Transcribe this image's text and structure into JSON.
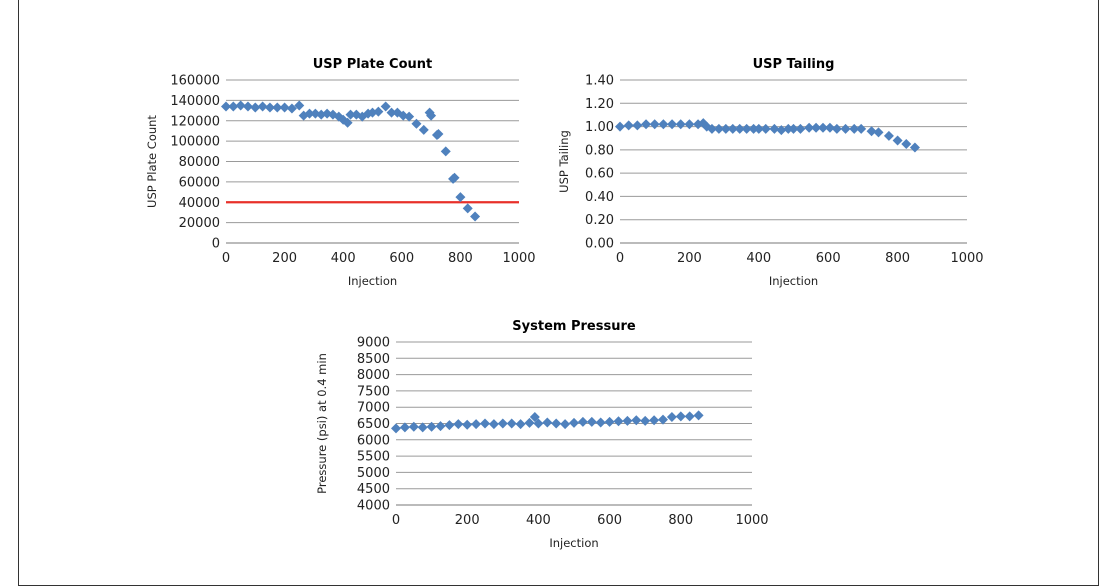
{
  "colors": {
    "marker": "#4f81bd",
    "threshold": "#e8302a",
    "grid": "#9a9a9a"
  },
  "chart_data": [
    {
      "type": "scatter",
      "title": "USP Plate Count",
      "xlabel": "Injection",
      "ylabel": "USP Plate Count",
      "xlim": [
        0,
        1000
      ],
      "ylim": [
        0,
        160000
      ],
      "x_ticks": [
        "0",
        "200",
        "400",
        "600",
        "800",
        "1000"
      ],
      "y_ticks": [
        "0",
        "20000",
        "40000",
        "60000",
        "80000",
        "100000",
        "120000",
        "140000",
        "160000"
      ],
      "grid": true,
      "threshold": 40000,
      "x": [
        0,
        25,
        50,
        75,
        100,
        125,
        150,
        175,
        200,
        225,
        250,
        265,
        285,
        305,
        325,
        345,
        365,
        385,
        400,
        415,
        425,
        445,
        465,
        485,
        500,
        520,
        545,
        565,
        585,
        605,
        625,
        650,
        675,
        695,
        700,
        720,
        725,
        750,
        775,
        780,
        800,
        825,
        850
      ],
      "y": [
        134000,
        134000,
        135000,
        134000,
        133000,
        134000,
        133000,
        133000,
        133000,
        132000,
        135000,
        125000,
        127000,
        127000,
        126000,
        127000,
        126000,
        124000,
        121000,
        118000,
        126000,
        126000,
        124000,
        127000,
        128000,
        129000,
        134000,
        128000,
        128000,
        125000,
        124000,
        117000,
        111000,
        128000,
        125000,
        106000,
        107000,
        90000,
        63000,
        64000,
        45000,
        34000,
        26000
      ]
    },
    {
      "type": "scatter",
      "title": "USP Tailing",
      "xlabel": "Injection",
      "ylabel": "USP Tailing",
      "xlim": [
        0,
        1000
      ],
      "ylim": [
        0,
        1.4
      ],
      "x_ticks": [
        "0",
        "200",
        "400",
        "600",
        "800",
        "1000"
      ],
      "y_ticks": [
        "0.00",
        "0.20",
        "0.40",
        "0.60",
        "0.80",
        "1.00",
        "1.20",
        "1.40"
      ],
      "grid": true,
      "x": [
        0,
        25,
        50,
        75,
        100,
        125,
        150,
        175,
        200,
        225,
        240,
        250,
        265,
        285,
        305,
        325,
        345,
        365,
        385,
        400,
        420,
        445,
        465,
        485,
        500,
        520,
        545,
        565,
        585,
        605,
        625,
        650,
        675,
        695,
        725,
        745,
        775,
        800,
        825,
        850
      ],
      "y": [
        1.0,
        1.01,
        1.01,
        1.02,
        1.02,
        1.02,
        1.02,
        1.02,
        1.02,
        1.02,
        1.03,
        1.0,
        0.98,
        0.98,
        0.98,
        0.98,
        0.98,
        0.98,
        0.98,
        0.98,
        0.98,
        0.98,
        0.97,
        0.98,
        0.98,
        0.98,
        0.99,
        0.99,
        0.99,
        0.99,
        0.98,
        0.98,
        0.98,
        0.98,
        0.96,
        0.95,
        0.92,
        0.88,
        0.85,
        0.82
      ]
    },
    {
      "type": "scatter",
      "title": "System Pressure",
      "xlabel": "Injection",
      "ylabel": "Pressure (psi) at 0.4 min",
      "xlim": [
        0,
        1000
      ],
      "ylim": [
        4000,
        9000
      ],
      "x_ticks": [
        "0",
        "200",
        "400",
        "600",
        "800",
        "1000"
      ],
      "y_ticks": [
        "4000",
        "4500",
        "5000",
        "5500",
        "6000",
        "6500",
        "7000",
        "7500",
        "8000",
        "8500",
        "9000"
      ],
      "grid": true,
      "x": [
        0,
        25,
        50,
        75,
        100,
        125,
        150,
        175,
        200,
        225,
        250,
        275,
        300,
        325,
        350,
        375,
        390,
        400,
        425,
        450,
        475,
        500,
        525,
        550,
        575,
        600,
        625,
        650,
        675,
        700,
        725,
        750,
        775,
        800,
        825,
        850
      ],
      "y": [
        6350,
        6380,
        6400,
        6380,
        6400,
        6420,
        6450,
        6480,
        6460,
        6480,
        6500,
        6480,
        6500,
        6500,
        6480,
        6520,
        6700,
        6500,
        6530,
        6500,
        6480,
        6520,
        6550,
        6550,
        6530,
        6550,
        6570,
        6580,
        6600,
        6580,
        6600,
        6620,
        6700,
        6720,
        6720,
        6750
      ]
    }
  ]
}
